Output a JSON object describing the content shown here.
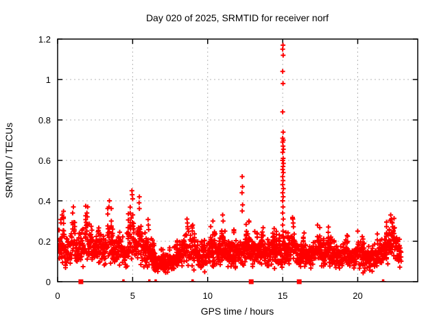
{
  "chart_data": {
    "type": "scatter",
    "title": "Day 020 of 2025, SRMTID for receiver norf",
    "xlabel": "GPS time / hours",
    "ylabel": "SRMTID / TECUs",
    "xlim": [
      0,
      24
    ],
    "ylim": [
      0,
      1.2
    ],
    "grid": true,
    "legend": "none",
    "marker": "plus",
    "colors": {
      "points": "#ff0000",
      "grid": "#b3b3b3",
      "axis": "#000000",
      "background": "#ffffff"
    },
    "xticks": [
      {
        "v": 0,
        "label": "0"
      },
      {
        "v": 5,
        "label": "5"
      },
      {
        "v": 10,
        "label": "10"
      },
      {
        "v": 15,
        "label": "15"
      },
      {
        "v": 20,
        "label": "20"
      }
    ],
    "yticks": [
      {
        "v": 0,
        "label": "0"
      },
      {
        "v": 0.2,
        "label": "0.2"
      },
      {
        "v": 0.4,
        "label": "0.4"
      },
      {
        "v": 0.6,
        "label": "0.6"
      },
      {
        "v": 0.8,
        "label": "0.8"
      },
      {
        "v": 1,
        "label": "1"
      },
      {
        "v": 1.2,
        "label": "1.2"
      }
    ],
    "scatter": {
      "x_start": 0.05,
      "x_end": 22.9,
      "step": 0.018
    },
    "envelope": [
      [
        0.05,
        0.17,
        0.1
      ],
      [
        0.3,
        0.2,
        0.11
      ],
      [
        0.6,
        0.14,
        0.07
      ],
      [
        0.8,
        0.16,
        0.08
      ],
      [
        1.05,
        0.21,
        0.11
      ],
      [
        1.3,
        0.15,
        0.07
      ],
      [
        1.6,
        0.17,
        0.08
      ],
      [
        2.0,
        0.22,
        0.11
      ],
      [
        2.35,
        0.16,
        0.07
      ],
      [
        2.7,
        0.19,
        0.09
      ],
      [
        3.1,
        0.15,
        0.06
      ],
      [
        3.45,
        0.22,
        0.12
      ],
      [
        3.8,
        0.14,
        0.06
      ],
      [
        4.15,
        0.17,
        0.08
      ],
      [
        4.5,
        0.12,
        0.05
      ],
      [
        4.95,
        0.25,
        0.13
      ],
      [
        5.2,
        0.16,
        0.06
      ],
      [
        5.45,
        0.23,
        0.12
      ],
      [
        5.75,
        0.14,
        0.06
      ],
      [
        6.05,
        0.17,
        0.08
      ],
      [
        6.4,
        0.11,
        0.05
      ],
      [
        6.8,
        0.09,
        0.04
      ],
      [
        7.3,
        0.09,
        0.04
      ],
      [
        7.8,
        0.1,
        0.05
      ],
      [
        8.2,
        0.12,
        0.06
      ],
      [
        8.65,
        0.18,
        0.09
      ],
      [
        9.0,
        0.16,
        0.08
      ],
      [
        9.4,
        0.11,
        0.05
      ],
      [
        9.8,
        0.13,
        0.06
      ],
      [
        10.3,
        0.16,
        0.09
      ],
      [
        10.7,
        0.13,
        0.06
      ],
      [
        11.05,
        0.17,
        0.09
      ],
      [
        11.4,
        0.12,
        0.05
      ],
      [
        11.8,
        0.15,
        0.07
      ],
      [
        12.3,
        0.14,
        0.06
      ],
      [
        12.7,
        0.17,
        0.08
      ],
      [
        13.1,
        0.14,
        0.06
      ],
      [
        13.5,
        0.16,
        0.07
      ],
      [
        13.9,
        0.14,
        0.06
      ],
      [
        14.3,
        0.15,
        0.07
      ],
      [
        14.7,
        0.13,
        0.06
      ],
      [
        15.05,
        0.16,
        0.08
      ],
      [
        15.4,
        0.14,
        0.06
      ],
      [
        15.7,
        0.19,
        0.09
      ],
      [
        16.1,
        0.12,
        0.05
      ],
      [
        16.5,
        0.14,
        0.06
      ],
      [
        16.9,
        0.12,
        0.05
      ],
      [
        17.3,
        0.17,
        0.08
      ],
      [
        17.7,
        0.12,
        0.05
      ],
      [
        18.05,
        0.16,
        0.07
      ],
      [
        18.45,
        0.11,
        0.05
      ],
      [
        18.85,
        0.13,
        0.06
      ],
      [
        19.25,
        0.14,
        0.06
      ],
      [
        19.65,
        0.11,
        0.05
      ],
      [
        20.05,
        0.15,
        0.07
      ],
      [
        20.45,
        0.11,
        0.05
      ],
      [
        20.85,
        0.12,
        0.05
      ],
      [
        21.25,
        0.13,
        0.06
      ],
      [
        21.65,
        0.15,
        0.06
      ],
      [
        22.0,
        0.19,
        0.08
      ],
      [
        22.3,
        0.21,
        0.08
      ],
      [
        22.6,
        0.16,
        0.06
      ],
      [
        22.9,
        0.13,
        0.05
      ]
    ],
    "outliers": [
      [
        0.3,
        0.33
      ],
      [
        1.05,
        0.37
      ],
      [
        1.0,
        0.34
      ],
      [
        2.0,
        0.37
      ],
      [
        1.95,
        0.34
      ],
      [
        3.45,
        0.4
      ],
      [
        3.42,
        0.37
      ],
      [
        4.95,
        0.45
      ],
      [
        4.97,
        0.43
      ],
      [
        5.0,
        0.41
      ],
      [
        5.45,
        0.42
      ],
      [
        5.43,
        0.39
      ],
      [
        6.05,
        0.28
      ],
      [
        8.62,
        0.31
      ],
      [
        8.65,
        0.29
      ],
      [
        9.0,
        0.28
      ],
      [
        10.35,
        0.3
      ],
      [
        11.0,
        0.33
      ],
      [
        11.03,
        0.3
      ],
      [
        12.3,
        0.52
      ],
      [
        12.32,
        0.47
      ],
      [
        12.29,
        0.44
      ],
      [
        12.33,
        0.38
      ],
      [
        12.3,
        0.35
      ],
      [
        12.75,
        0.3
      ],
      [
        15.68,
        0.31
      ],
      [
        15.7,
        0.29
      ],
      [
        17.32,
        0.28
      ],
      [
        18.05,
        0.27
      ],
      [
        20.0,
        0.25
      ],
      [
        22.2,
        0.33
      ],
      [
        22.25,
        0.31
      ],
      [
        22.3,
        0.29
      ]
    ],
    "spike": [
      [
        15.02,
        1.17
      ],
      [
        15.0,
        1.15
      ],
      [
        15.03,
        1.12
      ],
      [
        15.0,
        1.04
      ],
      [
        15.02,
        0.98
      ],
      [
        15.0,
        0.84
      ],
      [
        15.03,
        0.74
      ],
      [
        15.0,
        0.71
      ],
      [
        15.05,
        0.7
      ],
      [
        15.0,
        0.69
      ],
      [
        15.02,
        0.67
      ],
      [
        15.05,
        0.655
      ],
      [
        15.0,
        0.64
      ],
      [
        15.03,
        0.61
      ],
      [
        15.0,
        0.6
      ],
      [
        15.05,
        0.585
      ],
      [
        15.02,
        0.57
      ],
      [
        15.0,
        0.555
      ],
      [
        15.04,
        0.54
      ],
      [
        15.0,
        0.52
      ],
      [
        15.02,
        0.5
      ],
      [
        15.0,
        0.48
      ],
      [
        15.05,
        0.46
      ],
      [
        15.0,
        0.44
      ],
      [
        15.03,
        0.42
      ],
      [
        15.0,
        0.4
      ],
      [
        15.02,
        0.37
      ],
      [
        15.0,
        0.34
      ],
      [
        15.04,
        0.31
      ],
      [
        15.0,
        0.28
      ],
      [
        15.02,
        0.25
      ]
    ],
    "axis_markers": {
      "squares_x": [
        1.55,
        12.9,
        16.1
      ],
      "clipped_plus_x": [
        4.35,
        4.42,
        6.08,
        6.15,
        6.5,
        6.57,
        8.96,
        9.03,
        21.66,
        21.73
      ]
    }
  }
}
